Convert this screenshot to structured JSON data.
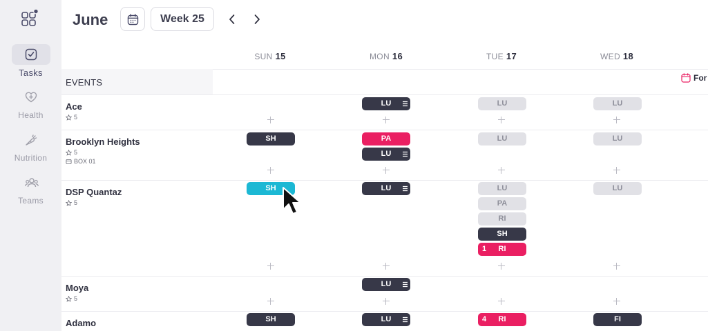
{
  "sidebar": {
    "items": [
      {
        "label": "Tasks",
        "icon": "check-square-icon",
        "active": true
      },
      {
        "label": "Health",
        "icon": "heart-plus-icon",
        "active": false
      },
      {
        "label": "Nutrition",
        "icon": "carrot-icon",
        "active": false
      },
      {
        "label": "Teams",
        "icon": "users-icon",
        "active": false
      }
    ]
  },
  "header": {
    "month": "June",
    "week_label": "Week 25"
  },
  "days": [
    {
      "dow": "SUN",
      "num": "15"
    },
    {
      "dow": "MON",
      "num": "16"
    },
    {
      "dow": "TUE",
      "num": "17"
    },
    {
      "dow": "WED",
      "num": "18"
    }
  ],
  "events_label": "EVENTS",
  "forecast_label": "For",
  "rows": [
    {
      "name": "Ace",
      "rating": "5",
      "box": ""
    },
    {
      "name": "Brooklyn Heights",
      "rating": "5",
      "box": "BOX 01"
    },
    {
      "name": "DSP Quantaz",
      "rating": "5",
      "box": ""
    },
    {
      "name": "Moya",
      "rating": "5",
      "box": ""
    },
    {
      "name": "Adamo",
      "rating": "",
      "box": ""
    }
  ],
  "pills": {
    "ace_mon": "LU",
    "ace_tue": "LU",
    "ace_wed": "LU",
    "bh_sun": "SH",
    "bh_mon_1": "PA",
    "bh_mon_2": "LU",
    "bh_tue": "LU",
    "bh_wed": "LU",
    "dsp_sun": "SH",
    "dsp_mon": "LU",
    "dsp_tue_1": "LU",
    "dsp_tue_2": "PA",
    "dsp_tue_3": "RI",
    "dsp_tue_4": "SH",
    "dsp_tue_5": "RI",
    "dsp_tue_5_count": "1",
    "dsp_wed": "LU",
    "moya_mon": "LU",
    "adamo_sun": "SH",
    "adamo_mon": "LU",
    "adamo_tue": "RI",
    "adamo_tue_count": "4",
    "adamo_wed": "FI"
  },
  "colors": {
    "dark_pill": "#373848",
    "light_pill": "#e1e1e6",
    "pink_pill": "#ea1f62",
    "teal_pill": "#1cb8d4",
    "sidebar_bg": "#f0f0f3"
  }
}
